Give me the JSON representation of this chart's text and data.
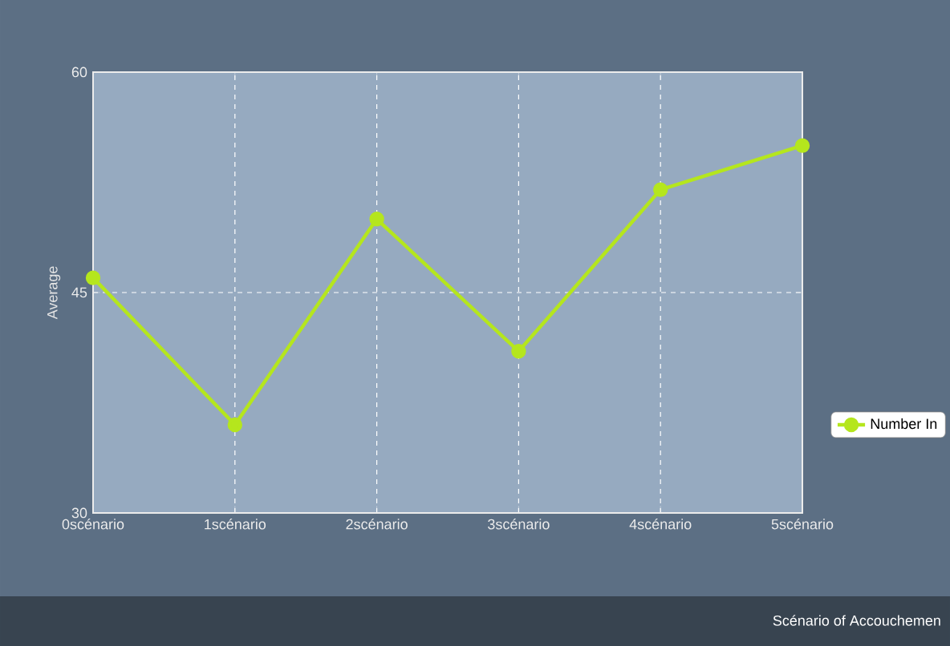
{
  "chart_data": {
    "type": "line",
    "annotations": [
      "Scénario of Accouchemen"
    ],
    "ylabel": "Average",
    "categories": [
      "0scénario",
      "1scénario",
      "2scénario",
      "3scénario",
      "4scénario",
      "5scénario"
    ],
    "series": [
      {
        "name": "Number In",
        "color": "#b5e61d",
        "values": [
          46,
          36,
          50,
          41,
          52,
          55
        ]
      }
    ],
    "ylim": [
      30,
      60
    ],
    "yticks": [
      30,
      45,
      60
    ],
    "grid": true,
    "legend": "right",
    "marker": "circle",
    "line_style": "solid"
  }
}
